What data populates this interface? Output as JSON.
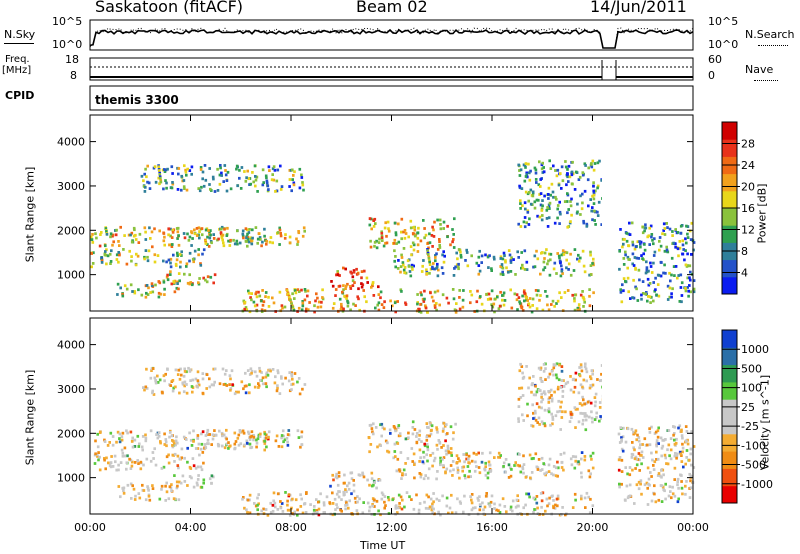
{
  "header": {
    "station": "Saskatoon (fitACF)",
    "beam": "Beam 02",
    "date": "14/Jun/2011"
  },
  "top_panels": {
    "nsky_label": "N.Sky",
    "nsearch_label": "N.Search",
    "nsky_ticks": [
      "10^5",
      "10^0"
    ],
    "nsearch_ticks": [
      "10^5",
      "10^0"
    ],
    "freq_label_1": "Freq.",
    "freq_label_2": "[MHz]",
    "freq_ticks": [
      "18",
      "8"
    ],
    "nave_label": "Nave",
    "nave_ticks": [
      "60",
      "0"
    ],
    "cpid_label": "CPID",
    "cpid_value": "themis 3300"
  },
  "colors": {
    "power": [
      "#0a1cf0",
      "#2452c9",
      "#2f7f9a",
      "#2fa050",
      "#8ac23c",
      "#e8d61a",
      "#f2a11c",
      "#f06a14",
      "#e8321a",
      "#d00000"
    ],
    "velocity": [
      "#e80000",
      "#f05010",
      "#f08c14",
      "#f4ac32",
      "#c8c8c8",
      "#c8c8c8",
      "#58c83c",
      "#2e9a52",
      "#2a6fa8",
      "#1040d0"
    ]
  },
  "chart_data": [
    {
      "type": "heatmap",
      "name": "power",
      "ylabel": "Slant Range [km]",
      "y_ticks": [
        "1000",
        "2000",
        "3000",
        "4000"
      ],
      "ylim": [
        180,
        4600
      ],
      "colorbar_label": "Power [dB]",
      "colorbar_ticks": [
        "4",
        "8",
        "12",
        "16",
        "20",
        "24",
        "28"
      ],
      "scatter_bands_ut_hours_km": [
        {
          "t0": 0.0,
          "t1": 7.0,
          "r0": 1650,
          "r1": 2100,
          "level": 0.55
        },
        {
          "t0": 0.0,
          "t1": 4.5,
          "r0": 1200,
          "r1": 1600,
          "level": 0.45
        },
        {
          "t0": 1.0,
          "t1": 3.5,
          "r0": 500,
          "r1": 900,
          "level": 0.5
        },
        {
          "t0": 3.0,
          "t1": 5.0,
          "r0": 800,
          "r1": 1100,
          "level": 0.6
        },
        {
          "t0": 2.0,
          "t1": 8.5,
          "r0": 2900,
          "r1": 3500,
          "level": 0.35
        },
        {
          "t0": 4.0,
          "t1": 8.5,
          "r0": 1700,
          "r1": 2100,
          "level": 0.5
        },
        {
          "t0": 6.0,
          "t1": 20.0,
          "r0": 180,
          "r1": 700,
          "level": 0.6
        },
        {
          "t0": 9.5,
          "t1": 11.5,
          "r0": 700,
          "r1": 1200,
          "level": 0.75
        },
        {
          "t0": 11.0,
          "t1": 14.5,
          "r0": 1600,
          "r1": 2300,
          "level": 0.6
        },
        {
          "t0": 12.0,
          "t1": 20.0,
          "r0": 1000,
          "r1": 1600,
          "level": 0.35
        },
        {
          "t0": 17.0,
          "t1": 20.5,
          "r0": 2100,
          "r1": 3600,
          "level": 0.3
        },
        {
          "t0": 21.0,
          "t1": 24.0,
          "r0": 400,
          "r1": 2200,
          "level": 0.3
        }
      ]
    },
    {
      "type": "heatmap",
      "name": "velocity",
      "xlabel": "Time UT",
      "ylabel": "Slant Range [km]",
      "x_ticks": [
        "00:00",
        "04:00",
        "08:00",
        "12:00",
        "16:00",
        "20:00",
        "00:00"
      ],
      "y_ticks": [
        "1000",
        "2000",
        "3000",
        "4000"
      ],
      "ylim": [
        180,
        4600
      ],
      "colorbar_label": "Velocity [m s^-1]",
      "colorbar_ticks": [
        "1000",
        "500",
        "100",
        "25",
        "-25",
        "-100",
        "-500",
        "-1000"
      ]
    }
  ]
}
